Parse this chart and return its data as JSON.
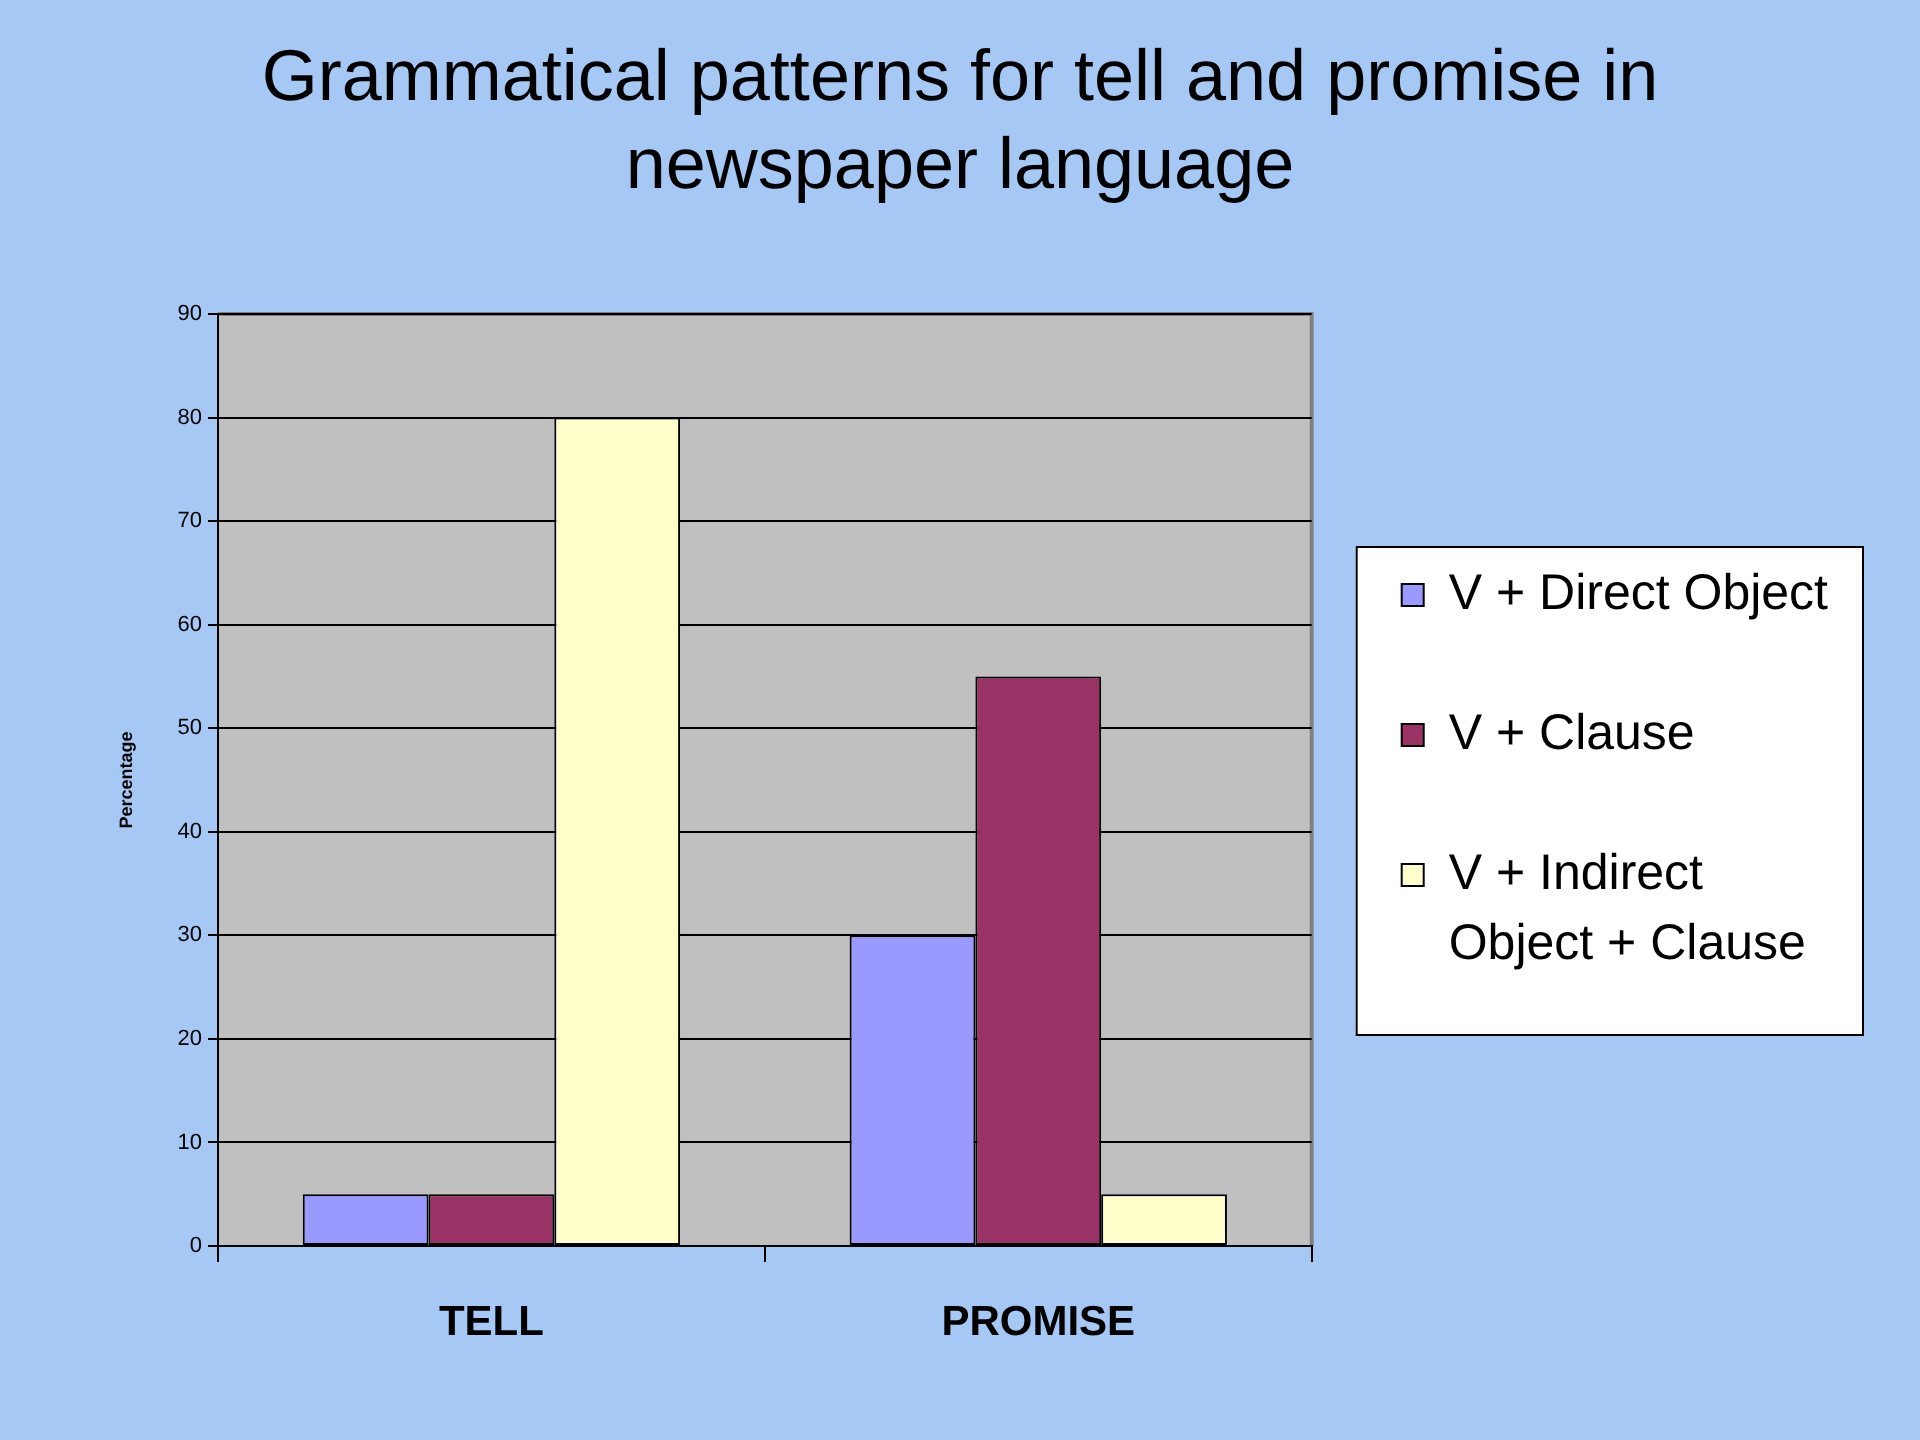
{
  "chart_data": {
    "type": "bar",
    "title": "Grammatical patterns for tell and promise in newspaper language",
    "ylabel": "Percentage",
    "categories": [
      "TELL",
      "PROMISE"
    ],
    "series": [
      {
        "name": "V + Direct Object",
        "color": "#9999ff",
        "values": [
          5,
          30
        ]
      },
      {
        "name": "V + Clause",
        "color": "#993366",
        "values": [
          5,
          55
        ]
      },
      {
        "name": "V + Indirect Object + Clause",
        "color": "#ffffcc",
        "values": [
          80,
          5
        ]
      }
    ],
    "ylim": [
      0,
      90
    ],
    "yticks": [
      0,
      10,
      20,
      30,
      40,
      50,
      60,
      70,
      80,
      90
    ],
    "grid": "y",
    "legend": "right"
  }
}
